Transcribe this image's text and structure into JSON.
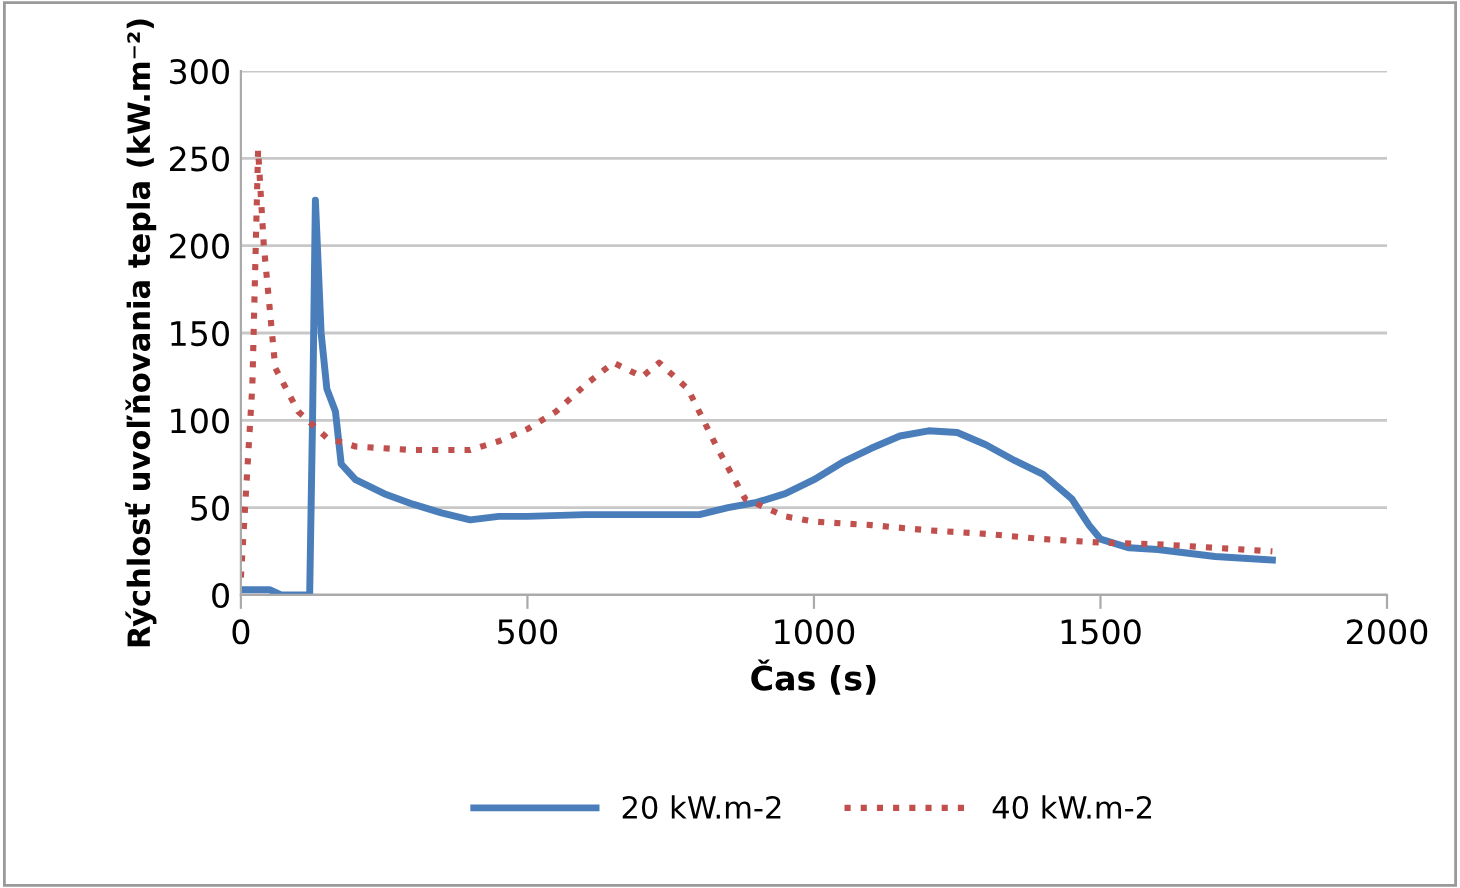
{
  "chart_data": {
    "type": "line",
    "xlabel": "Čas (s)",
    "ylabel": "Rýchlosť uvoľňovania tepla (kW.m⁻²)",
    "xlim": [
      0,
      2000
    ],
    "ylim": [
      0,
      300
    ],
    "xticks": [
      0,
      500,
      1000,
      1500,
      2000
    ],
    "yticks": [
      0,
      50,
      100,
      150,
      200,
      250,
      300
    ],
    "grid": "y",
    "legend": "bottom",
    "series": [
      {
        "name": "20 kW.m-2",
        "color": "#4a7ebb",
        "line_style": "solid",
        "x": [
          0,
          50,
          70,
          120,
          125,
          130,
          140,
          150,
          165,
          175,
          200,
          250,
          300,
          350,
          400,
          450,
          500,
          600,
          700,
          800,
          850,
          900,
          950,
          1000,
          1050,
          1100,
          1150,
          1200,
          1250,
          1300,
          1350,
          1400,
          1450,
          1480,
          1500,
          1550,
          1600,
          1700,
          1800
        ],
        "values": [
          3,
          3,
          0,
          0,
          100,
          226,
          150,
          118,
          105,
          75,
          66,
          58,
          52,
          47,
          43,
          45,
          45,
          46,
          46,
          46,
          50,
          53,
          58,
          66,
          76,
          84,
          91,
          94,
          93,
          86,
          77,
          69,
          55,
          40,
          32,
          27,
          26,
          22,
          20
        ]
      },
      {
        "name": "40 kW.m-2",
        "color": "#c0504d",
        "line_style": "dotted",
        "x": [
          0,
          20,
          30,
          40,
          60,
          100,
          150,
          200,
          300,
          400,
          450,
          500,
          550,
          600,
          650,
          700,
          730,
          780,
          830,
          880,
          950,
          1000,
          1100,
          1200,
          1300,
          1400,
          1500,
          1600,
          1700,
          1800
        ],
        "values": [
          10,
          120,
          255,
          200,
          130,
          105,
          90,
          85,
          83,
          83,
          88,
          95,
          105,
          120,
          133,
          125,
          133,
          118,
          85,
          55,
          45,
          42,
          40,
          37,
          35,
          32,
          30,
          29,
          27,
          25
        ]
      }
    ]
  }
}
